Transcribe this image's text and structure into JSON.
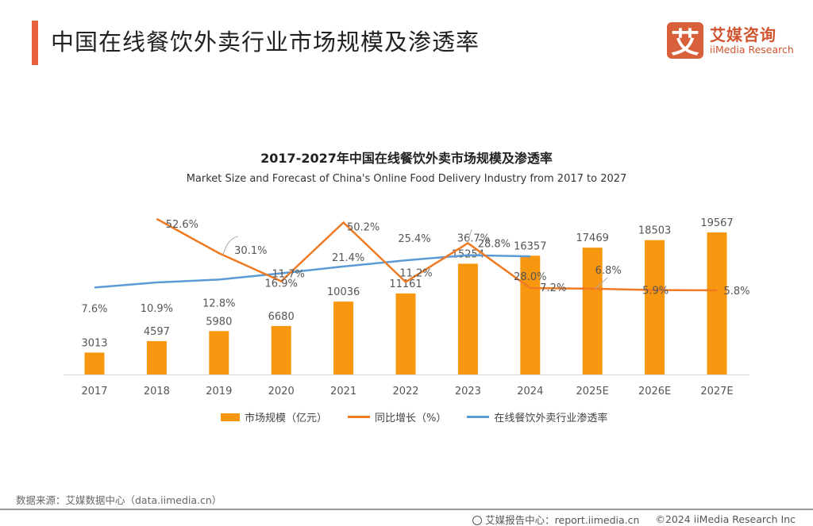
{
  "header": {
    "title": "中国在线餐饮外卖行业市场规模及渗透率",
    "logo_mark": "艾",
    "logo_cn": "艾媒咨询",
    "logo_en": "iiMedia Research"
  },
  "chart_data": {
    "type": "bar+line",
    "title": "2017-2027年中国在线餐饮外卖市场规模及渗透率",
    "subtitle": "Market Size and Forecast of China's Online Food Delivery Industry from 2017 to 2027",
    "categories": [
      "2017",
      "2018",
      "2019",
      "2020",
      "2021",
      "2022",
      "2023",
      "2024",
      "2025E",
      "2026E",
      "2027E"
    ],
    "series": [
      {
        "name": "市场规模（亿元）",
        "type": "bar",
        "axis": "primary",
        "color": "#f7960f",
        "values": [
          3013,
          4597,
          5980,
          6680,
          10036,
          11161,
          15254,
          16357,
          17469,
          18503,
          19567
        ],
        "labels": [
          "3013",
          "4597",
          "5980",
          "6680",
          "10036",
          "11161",
          "15254",
          "16357",
          "17469",
          "18503",
          "19567"
        ]
      },
      {
        "name": "同比增长（%）",
        "type": "line",
        "axis": "secondary",
        "color": "#ef7a24",
        "values": [
          null,
          52.6,
          30.1,
          11.7,
          50.2,
          11.2,
          36.7,
          7.2,
          6.8,
          5.9,
          5.8
        ],
        "labels": [
          "",
          "52.6%",
          "30.1%",
          "11.7%",
          "50.2%",
          "11.2%",
          "36.7%",
          "7.2%",
          "6.8%",
          "5.9%",
          "5.8%"
        ]
      },
      {
        "name": "在线餐饮外卖行业渗透率",
        "type": "line",
        "axis": "secondary",
        "color": "#5b9bd5",
        "values": [
          7.6,
          10.9,
          12.8,
          16.9,
          21.4,
          25.4,
          28.8,
          28.0,
          null,
          null,
          null
        ],
        "labels": [
          "7.6%",
          "10.9%",
          "12.8%",
          "16.9%",
          "21.4%",
          "25.4%",
          "28.8%",
          "28.0%",
          "",
          "",
          ""
        ]
      }
    ],
    "legend": "bottom",
    "grid": false
  },
  "footer": {
    "source": "数据来源：艾媒数据中心（data.iimedia.cn）",
    "report": "艾媒报告中心：report.iimedia.cn",
    "copyright": "©2024  iiMedia Research  Inc"
  }
}
